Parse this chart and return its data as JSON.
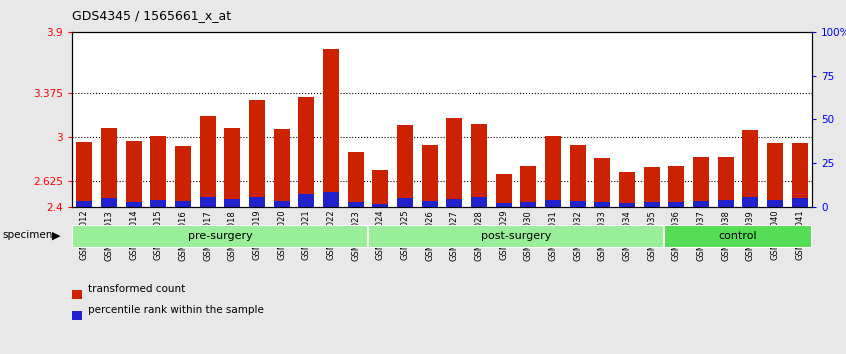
{
  "title": "GDS4345 / 1565661_x_at",
  "categories": [
    "GSM842012",
    "GSM842013",
    "GSM842014",
    "GSM842015",
    "GSM842016",
    "GSM842017",
    "GSM842018",
    "GSM842019",
    "GSM842020",
    "GSM842021",
    "GSM842022",
    "GSM842023",
    "GSM842024",
    "GSM842025",
    "GSM842026",
    "GSM842027",
    "GSM842028",
    "GSM842029",
    "GSM842030",
    "GSM842031",
    "GSM842032",
    "GSM842033",
    "GSM842034",
    "GSM842035",
    "GSM842036",
    "GSM842037",
    "GSM842038",
    "GSM842039",
    "GSM842040",
    "GSM842041"
  ],
  "red_values": [
    2.96,
    3.08,
    2.97,
    3.01,
    2.92,
    3.18,
    3.08,
    3.32,
    3.07,
    3.34,
    3.75,
    2.87,
    2.72,
    3.1,
    2.93,
    3.16,
    3.11,
    2.68,
    2.75,
    3.01,
    2.93,
    2.82,
    2.7,
    2.74,
    2.75,
    2.83,
    2.83,
    3.06,
    2.95,
    2.95
  ],
  "blue_heights": [
    0.055,
    0.075,
    0.04,
    0.06,
    0.05,
    0.09,
    0.07,
    0.085,
    0.055,
    0.11,
    0.13,
    0.045,
    0.03,
    0.075,
    0.055,
    0.07,
    0.085,
    0.038,
    0.045,
    0.06,
    0.055,
    0.045,
    0.038,
    0.045,
    0.045,
    0.055,
    0.06,
    0.09,
    0.06,
    0.075
  ],
  "ymin": 2.4,
  "ymax": 3.9,
  "yticks_left": [
    2.4,
    2.625,
    3.0,
    3.375,
    3.9
  ],
  "yticks_left_labels": [
    "2.4",
    "2.625",
    "3",
    "3.375",
    "3.9"
  ],
  "yticks_right_vals": [
    0,
    25,
    50,
    75,
    100
  ],
  "yticks_right_labels": [
    "0",
    "25",
    "50",
    "75",
    "100%"
  ],
  "hlines": [
    2.625,
    3.0,
    3.375
  ],
  "bar_color_red": "#CC2200",
  "bar_color_blue": "#2222CC",
  "bg_color": "#E8E8E8",
  "plot_bg": "#FFFFFF",
  "groups": [
    {
      "label": "pre-surgery",
      "start": 0,
      "end": 12,
      "color": "#99EE99"
    },
    {
      "label": "post-surgery",
      "start": 12,
      "end": 24,
      "color": "#99EE99"
    },
    {
      "label": "control",
      "start": 24,
      "end": 30,
      "color": "#55DD55"
    }
  ]
}
